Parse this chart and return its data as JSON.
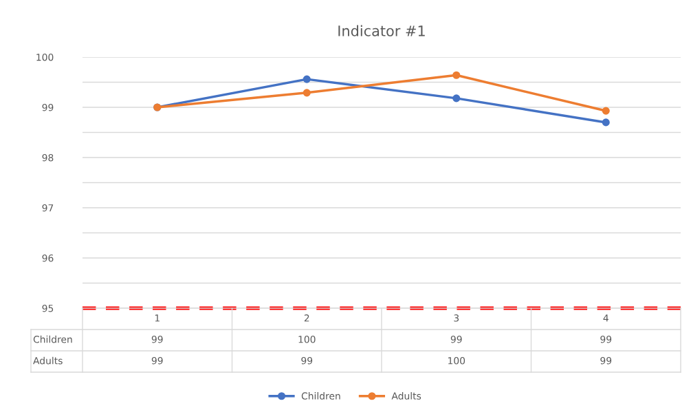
{
  "chart_data": {
    "type": "line",
    "title": "Indicator #1",
    "categories": [
      "1",
      "2",
      "3",
      "4"
    ],
    "series": [
      {
        "name": "Children",
        "color": "#4472c4",
        "values": [
          99.0,
          99.56,
          99.18,
          98.7
        ],
        "value_labels": [
          "99",
          "100",
          "99",
          "99"
        ]
      },
      {
        "name": "Adults",
        "color": "#ed7d31",
        "values": [
          99.0,
          99.29,
          99.64,
          98.93
        ],
        "value_labels": [
          "99",
          "99",
          "100",
          "99"
        ]
      }
    ],
    "ylim": [
      95,
      100
    ],
    "yticks": [
      95,
      {
        "value": 95.5,
        "label": null
      },
      96,
      {
        "value": 96.5,
        "label": null
      },
      97,
      {
        "value": 97.5,
        "label": null
      },
      98,
      {
        "value": 98.5,
        "label": null
      },
      99,
      {
        "value": 99.5,
        "label": null
      },
      100
    ],
    "ref_lines": [
      {
        "axis": "y",
        "value": 95,
        "color": "#ff0000",
        "line_style": "dashed"
      }
    ],
    "grid": "y",
    "legend": "bottom",
    "marker": "circle",
    "line_style": "solid"
  }
}
